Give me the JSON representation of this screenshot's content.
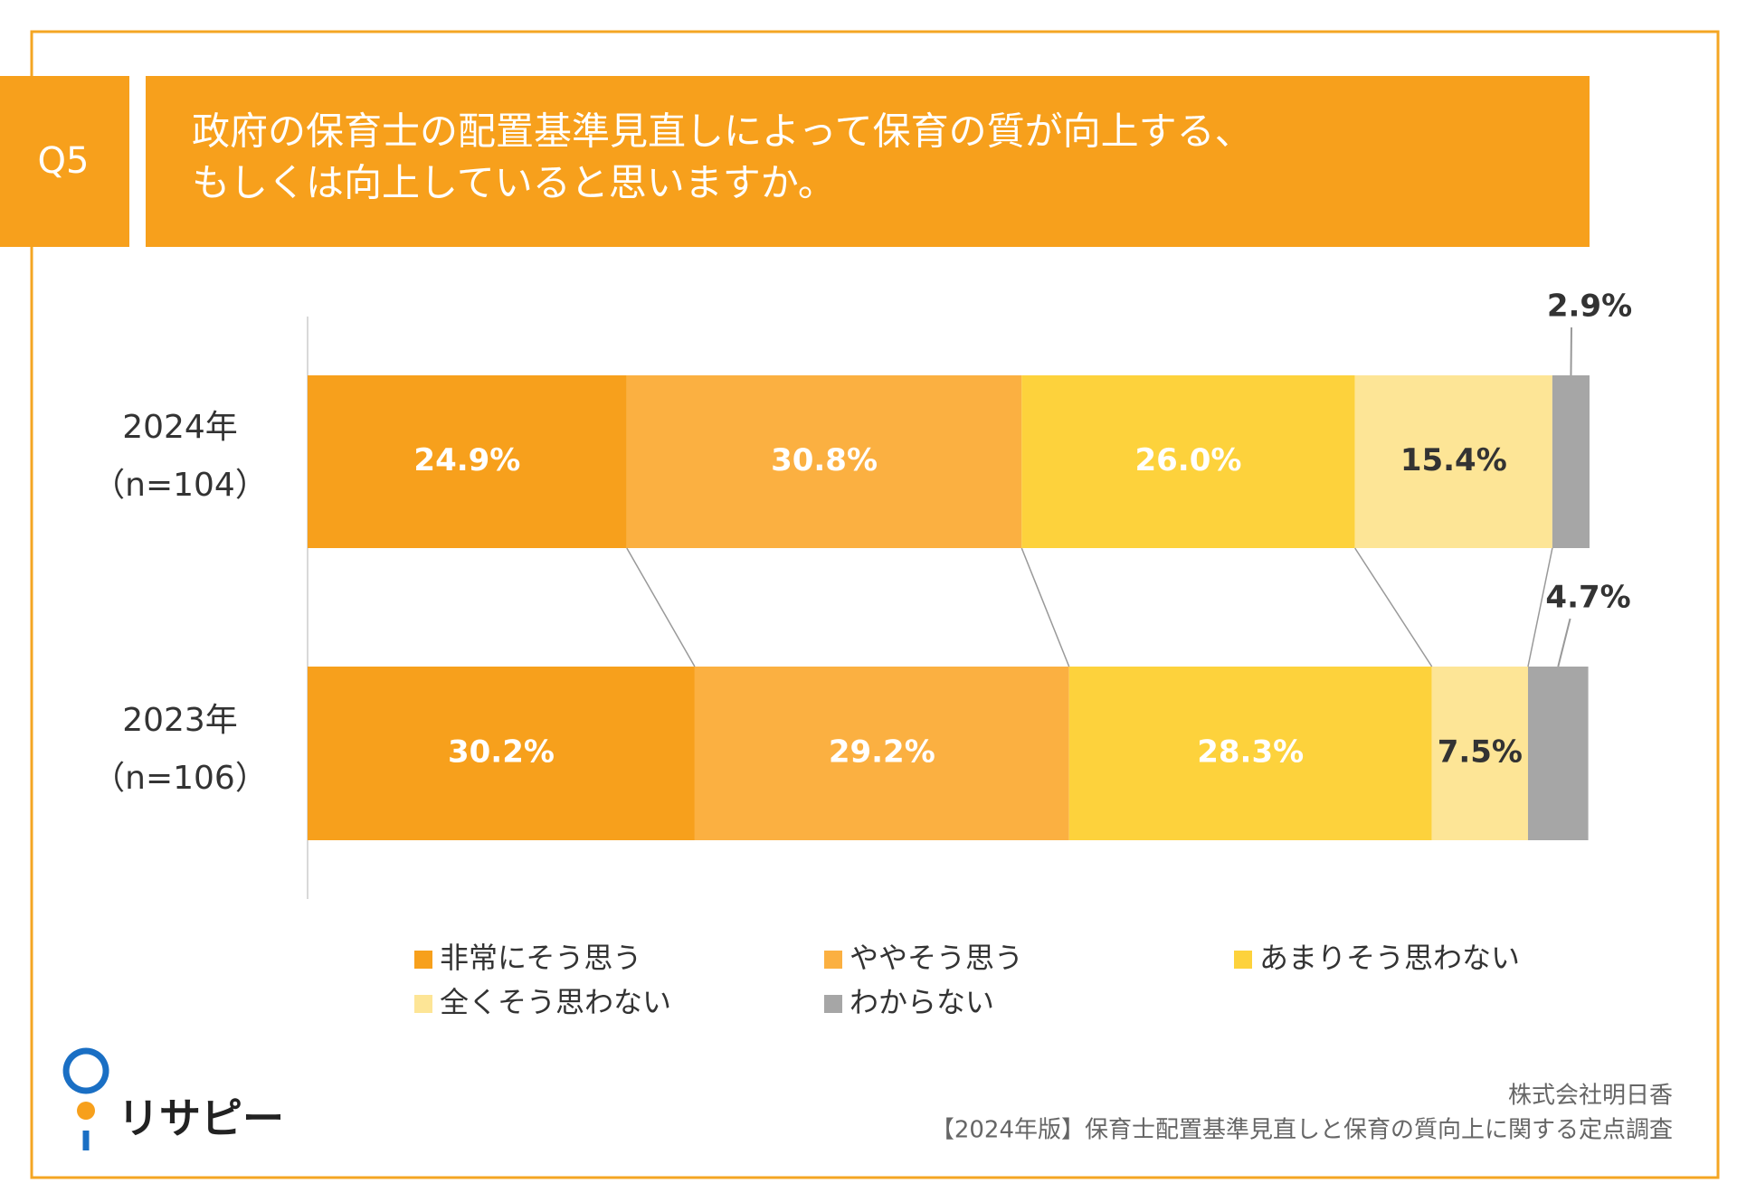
{
  "question": {
    "number": "Q5",
    "lines": [
      "政府の保育士の配置基準見直しによって保育の質が向上する、",
      "もしくは向上していると思いますか。"
    ]
  },
  "chart_data": {
    "type": "stacked-barh",
    "categories": [
      [
        "2024年",
        "（n=104）"
      ],
      [
        "2023年",
        "（n=106）"
      ]
    ],
    "xlim": [
      0,
      100
    ],
    "series": [
      {
        "name": "非常にそう思う",
        "color": "#f7a01c",
        "label_color": "#ffffff",
        "values": [
          24.9,
          30.2
        ],
        "value_labels": [
          "24.9%",
          "30.2%"
        ]
      },
      {
        "name": "ややそう思う",
        "color": "#fbb041",
        "label_color": "#ffffff",
        "values": [
          30.8,
          29.2
        ],
        "value_labels": [
          "30.8%",
          "29.2%"
        ]
      },
      {
        "name": "あまりそう思わない",
        "color": "#fdd23c",
        "label_color": "#ffffff",
        "values": [
          26.0,
          28.3
        ],
        "value_labels": [
          "26.0%",
          "28.3%"
        ]
      },
      {
        "name": "全くそう思わない",
        "color": "#fde596",
        "label_color": "#333333",
        "values": [
          15.4,
          7.5
        ],
        "value_labels": [
          "15.4%",
          "7.5%"
        ]
      },
      {
        "name": "わからない",
        "color": "#a6a6a6",
        "label_color": "#333333",
        "label_position": "outside",
        "values": [
          2.9,
          4.7
        ],
        "value_labels": [
          "2.9%",
          "4.7%"
        ]
      }
    ]
  },
  "footer": {
    "lines": [
      "株式会社明日香",
      "【2024年版】保育士配置基準見直しと保育の質向上に関する定点調査"
    ]
  },
  "logo": "リサピー"
}
